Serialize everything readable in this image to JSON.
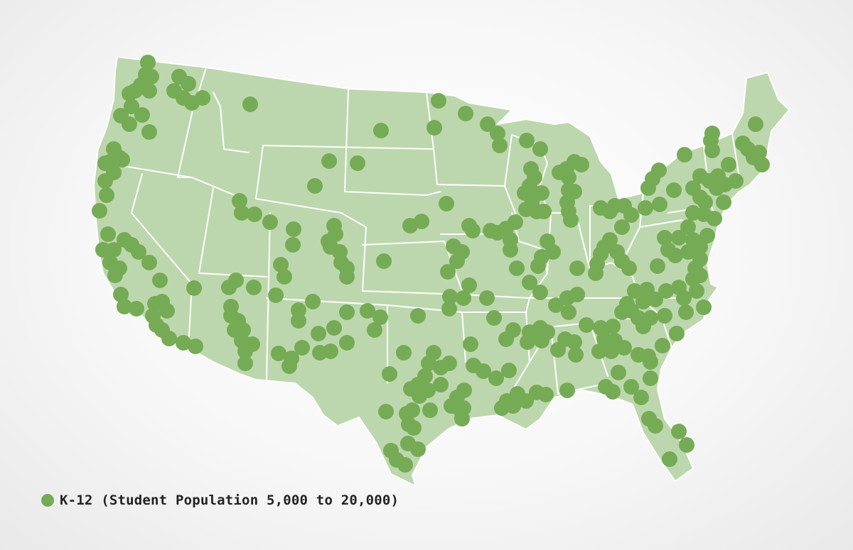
{
  "colors": {
    "land": "#bcd7ad",
    "borders": "#ffffff",
    "marker": "#76ab55"
  },
  "legend": {
    "label": "K-12 (Student Population 5,000 to 20,000)",
    "marker_color": "#76ab55"
  }
}
